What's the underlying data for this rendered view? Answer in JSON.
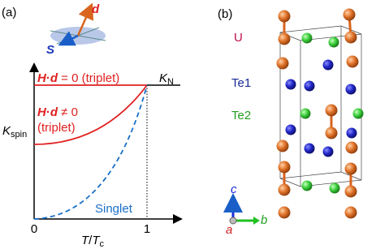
{
  "panel_a": {
    "label": "(a)",
    "icon": {
      "d": "d",
      "S": "S"
    },
    "triplet_zero": [
      "H",
      "·",
      "d",
      " = 0 (triplet)"
    ],
    "triplet_nonzero": [
      "H",
      "·",
      "d",
      " ≠ 0"
    ],
    "triplet_nonzero_note": "(triplet)",
    "k_n": {
      "main": "K",
      "sub": "N"
    },
    "y_label": {
      "main": "K",
      "sub": "spin"
    },
    "singlet": "Singlet",
    "x_ticks": [
      "0",
      "1"
    ],
    "x_label": {
      "main": "T",
      "sep": "/",
      "main2": "T",
      "sub": "c"
    }
  },
  "panel_b": {
    "label": "(b)",
    "atoms": [
      "U",
      "Te1",
      "Te2"
    ],
    "axes": [
      "c",
      "a",
      "b"
    ]
  }
}
